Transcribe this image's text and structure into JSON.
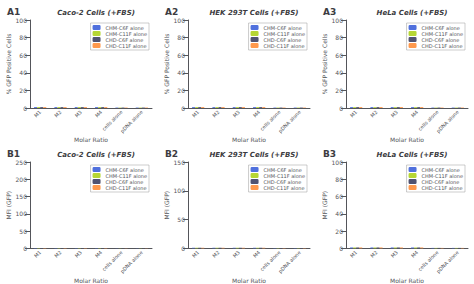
{
  "chart_data": [
    {
      "type": "bar",
      "title": "Caco-2 Cells (+FBS)",
      "annotation": "A1",
      "xlabel": "Molar Ratio",
      "ylabel": "% GFP Positive Cells",
      "categories": [
        "M1",
        "M2",
        "M3",
        "M4",
        "cells alone",
        "pDNA alone"
      ],
      "series": [
        {
          "name": "CHM-C6F alone",
          "values": [
            1,
            1,
            1,
            1,
            0.5,
            0.5
          ]
        },
        {
          "name": "CHM-C11F alone",
          "values": [
            1,
            1,
            1,
            1,
            0.5,
            0.5
          ]
        },
        {
          "name": "CHD-C6F alone",
          "values": [
            1,
            1,
            1,
            1,
            0.5,
            0.5
          ]
        },
        {
          "name": "CHD-C11F alone",
          "values": [
            1,
            1,
            1,
            1,
            0.5,
            0.5
          ]
        }
      ],
      "ylim": [
        0,
        100
      ],
      "yticks": [
        0,
        20,
        40,
        60,
        80,
        100
      ],
      "grid": false,
      "legend": "upper right"
    },
    {
      "type": "bar",
      "title": "HEK 293T Cells (+FBS)",
      "annotation": "A2",
      "xlabel": "Molar Ratio",
      "ylabel": "% GFP Positive Cells",
      "categories": [
        "M1",
        "M2",
        "M3",
        "M4",
        "cells alone",
        "pDNA alone"
      ],
      "series": [
        {
          "name": "CHM-C6F alone",
          "values": [
            1,
            1,
            1,
            1,
            0.5,
            0.5
          ]
        },
        {
          "name": "CHM-C11F alone",
          "values": [
            1,
            1,
            1,
            1,
            0.5,
            0.5
          ]
        },
        {
          "name": "CHD-C6F alone",
          "values": [
            1,
            1,
            1,
            1,
            0.5,
            0.5
          ]
        },
        {
          "name": "CHD-C11F alone",
          "values": [
            1,
            1,
            1,
            1,
            0.5,
            0.5
          ]
        }
      ],
      "ylim": [
        0,
        100
      ],
      "yticks": [
        0,
        20,
        40,
        60,
        80,
        100
      ],
      "grid": false,
      "legend": "upper right"
    },
    {
      "type": "bar",
      "title": "HeLa Cells (+FBS)",
      "annotation": "A3",
      "xlabel": "Molar Ratio",
      "ylabel": "% GFP Positive Cells",
      "categories": [
        "M1",
        "M2",
        "M3",
        "M4",
        "cells alone",
        "pDNA alone"
      ],
      "series": [
        {
          "name": "CHM-C6F alone",
          "values": [
            1,
            1,
            1,
            1,
            0.5,
            0.5
          ]
        },
        {
          "name": "CHM-C11F alone",
          "values": [
            1,
            1,
            1,
            1,
            0.5,
            0.5
          ]
        },
        {
          "name": "CHD-C6F alone",
          "values": [
            1,
            1,
            1,
            1,
            0.5,
            0.5
          ]
        },
        {
          "name": "CHD-C11F alone",
          "values": [
            1,
            1,
            1,
            1,
            0.5,
            0.5
          ]
        }
      ],
      "ylim": [
        0,
        100
      ],
      "yticks": [
        0,
        20,
        40,
        60,
        80,
        100
      ],
      "grid": false,
      "legend": "upper right"
    },
    {
      "type": "bar",
      "title": "Caco-2 Cells (+FBS)",
      "annotation": "B1",
      "xlabel": "Molar Ratio",
      "ylabel": "MFI (GFP)",
      "categories": [
        "M1",
        "M2",
        "M3",
        "M4",
        "cells alone",
        "pDNA alone"
      ],
      "series": [
        {
          "name": "CHM-C6F alone",
          "values": [
            1,
            1,
            1,
            1,
            0.5,
            0.5
          ]
        },
        {
          "name": "CHM-C11F alone",
          "values": [
            1,
            1,
            1,
            1,
            0.5,
            0.5
          ]
        },
        {
          "name": "CHD-C6F alone",
          "values": [
            1,
            1,
            1,
            1,
            0.5,
            0.5
          ]
        },
        {
          "name": "CHD-C11F alone",
          "values": [
            1,
            1,
            1,
            1,
            0.5,
            0.5
          ]
        }
      ],
      "ylim": [
        0,
        250
      ],
      "yticks": [
        0,
        50,
        100,
        150,
        200,
        250
      ],
      "grid": false,
      "legend": "upper right"
    },
    {
      "type": "bar",
      "title": "HEK 293T Cells (+FBS)",
      "annotation": "B2",
      "xlabel": "Molar Ratio",
      "ylabel": "MFI (GFP)",
      "categories": [
        "M1",
        "M2",
        "M3",
        "M4",
        "cells alone",
        "pDNA alone"
      ],
      "series": [
        {
          "name": "CHM-C6F alone",
          "values": [
            1,
            1,
            1,
            1,
            0.5,
            0.5
          ]
        },
        {
          "name": "CHM-C11F alone",
          "values": [
            1,
            1,
            1,
            1,
            0.5,
            0.5
          ]
        },
        {
          "name": "CHD-C6F alone",
          "values": [
            1,
            1,
            1,
            1,
            0.5,
            0.5
          ]
        },
        {
          "name": "CHD-C11F alone",
          "values": [
            1,
            1,
            1,
            1,
            0.5,
            0.5
          ]
        }
      ],
      "ylim": [
        0,
        150
      ],
      "yticks": [
        0,
        50,
        100,
        150
      ],
      "grid": false,
      "legend": "upper right"
    },
    {
      "type": "bar",
      "title": "HeLa Cells (+FBS)",
      "annotation": "B3",
      "xlabel": "Molar Ratio",
      "ylabel": "MFI (GFP)",
      "categories": [
        "M1",
        "M2",
        "M3",
        "M4",
        "cells alone",
        "pDNA alone"
      ],
      "series": [
        {
          "name": "CHM-C6F alone",
          "values": [
            1,
            1,
            1,
            1,
            0.5,
            0.5
          ]
        },
        {
          "name": "CHM-C11F alone",
          "values": [
            1,
            1,
            1,
            1,
            0.5,
            0.5
          ]
        },
        {
          "name": "CHD-C6F alone",
          "values": [
            1,
            1,
            1,
            1,
            0.5,
            0.5
          ]
        },
        {
          "name": "CHD-C11F alone",
          "values": [
            1,
            1,
            1,
            1,
            0.5,
            0.5
          ]
        }
      ],
      "ylim": [
        0,
        100
      ],
      "yticks": [
        0,
        20,
        40,
        60,
        80,
        100
      ],
      "grid": false,
      "legend": "upper right"
    }
  ]
}
